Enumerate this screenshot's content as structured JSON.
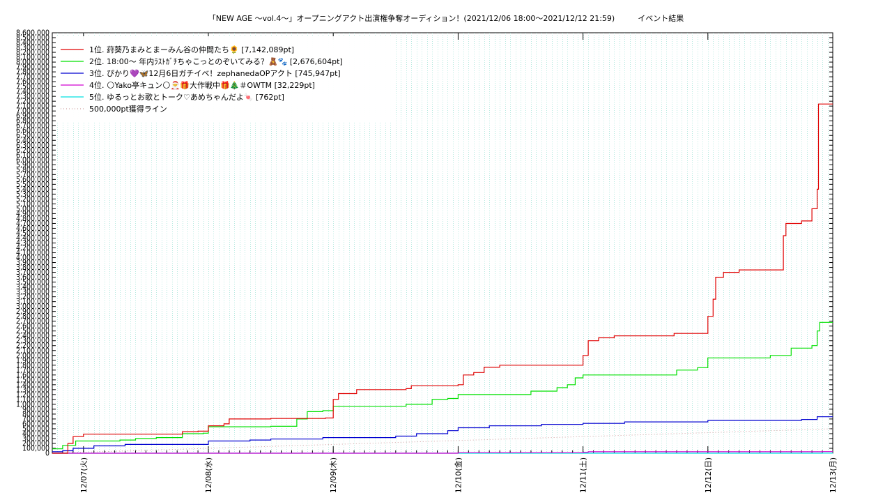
{
  "title": "「NEW AGE 〜vol.4〜」オープニングアクト出演権争奪オーディション！(2021/12/06 18:00〜2021/12/12 21:59)　　　イベント結果",
  "chart_data": {
    "type": "line",
    "title": "「NEW AGE 〜vol.4〜」オープニングアクト出演権争奪オーディション！(2021/12/06 18:00〜2021/12/12 21:59)　　　イベント結果",
    "xlabel": "",
    "ylabel": "",
    "x_ticks": [
      "12/07(火)",
      "12/08(水)",
      "12/09(木)",
      "12/10(金)",
      "12/11(土)",
      "12/12(日)",
      "12/13(月)"
    ],
    "x_range": [
      "2021/12/06 18:00",
      "2021/12/13 00:00"
    ],
    "y_range": [
      0,
      8600000
    ],
    "y_tick_step": 100000,
    "grid": true,
    "legend_position": "top-left",
    "reference_line": {
      "name": "500,000pt獲得ライン",
      "value": 500000,
      "color": "#d0a0a0"
    },
    "series": [
      {
        "name": "1位. 荮葵乃まみとまーみん谷の仲間たち🌻 [7,142,089pt]",
        "color": "#e00000",
        "points": [
          [
            "2021/12/06 18:00",
            0
          ],
          [
            "2021/12/06 20:30",
            0
          ],
          [
            "2021/12/06 21:00",
            200000
          ],
          [
            "2021/12/06 22:00",
            340000
          ],
          [
            "2021/12/07 00:00",
            390000
          ],
          [
            "2021/12/07 18:00",
            390000
          ],
          [
            "2021/12/07 19:00",
            440000
          ],
          [
            "2021/12/07 22:00",
            450000
          ],
          [
            "2021/12/08 00:00",
            560000
          ],
          [
            "2021/12/08 03:00",
            600000
          ],
          [
            "2021/12/08 04:00",
            700000
          ],
          [
            "2021/12/08 12:00",
            710000
          ],
          [
            "2021/12/08 22:30",
            720000
          ],
          [
            "2021/12/09 00:00",
            1100000
          ],
          [
            "2021/12/09 01:00",
            1220000
          ],
          [
            "2021/12/09 04:30",
            1300000
          ],
          [
            "2021/12/09 14:00",
            1320000
          ],
          [
            "2021/12/09 15:00",
            1380000
          ],
          [
            "2021/12/09 23:59",
            1400000
          ],
          [
            "2021/12/10 01:00",
            1600000
          ],
          [
            "2021/12/10 03:00",
            1650000
          ],
          [
            "2021/12/10 05:00",
            1760000
          ],
          [
            "2021/12/10 08:00",
            1800000
          ],
          [
            "2021/12/10 23:00",
            1800000
          ],
          [
            "2021/12/11 00:00",
            2000000
          ],
          [
            "2021/12/11 01:00",
            2300000
          ],
          [
            "2021/12/11 03:00",
            2360000
          ],
          [
            "2021/12/11 06:00",
            2400000
          ],
          [
            "2021/12/11 16:00",
            2400000
          ],
          [
            "2021/12/11 17:30",
            2450000
          ],
          [
            "2021/12/11 23:00",
            2450000
          ],
          [
            "2021/12/12 00:00",
            2800000
          ],
          [
            "2021/12/12 01:00",
            3150000
          ],
          [
            "2021/12/12 01:30",
            3600000
          ],
          [
            "2021/12/12 03:00",
            3700000
          ],
          [
            "2021/12/12 06:00",
            3750000
          ],
          [
            "2021/12/12 14:00",
            3750000
          ],
          [
            "2021/12/12 14:30",
            4450000
          ],
          [
            "2021/12/12 15:00",
            4700000
          ],
          [
            "2021/12/12 18:00",
            4750000
          ],
          [
            "2021/12/12 20:00",
            5000000
          ],
          [
            "2021/12/12 21:00",
            5400000
          ],
          [
            "2021/12/12 21:15",
            7142089
          ],
          [
            "2021/12/13 00:00",
            7142089
          ]
        ]
      },
      {
        "name": "2位. 18:00〜 年内ﾗｽﾄｶﾞﾁちゃこっとのぞいてみる？🧸🐾 [2,676,604pt]",
        "color": "#00e000",
        "points": [
          [
            "2021/12/06 18:00",
            90000
          ],
          [
            "2021/12/06 19:00",
            90000
          ],
          [
            "2021/12/06 20:00",
            160000
          ],
          [
            "2021/12/06 21:30",
            160000
          ],
          [
            "2021/12/06 22:30",
            250000
          ],
          [
            "2021/12/07 07:00",
            270000
          ],
          [
            "2021/12/07 10:00",
            300000
          ],
          [
            "2021/12/07 14:00",
            320000
          ],
          [
            "2021/12/07 19:00",
            400000
          ],
          [
            "2021/12/07 23:00",
            410000
          ],
          [
            "2021/12/08 00:00",
            540000
          ],
          [
            "2021/12/08 12:00",
            550000
          ],
          [
            "2021/12/08 17:00",
            700000
          ],
          [
            "2021/12/08 19:00",
            850000
          ],
          [
            "2021/12/08 22:00",
            870000
          ],
          [
            "2021/12/09 00:00",
            960000
          ],
          [
            "2021/12/09 12:00",
            960000
          ],
          [
            "2021/12/09 14:00",
            1000000
          ],
          [
            "2021/12/09 19:00",
            1100000
          ],
          [
            "2021/12/09 22:00",
            1120000
          ],
          [
            "2021/12/10 00:00",
            1200000
          ],
          [
            "2021/12/10 12:00",
            1200000
          ],
          [
            "2021/12/10 14:00",
            1270000
          ],
          [
            "2021/12/10 19:00",
            1340000
          ],
          [
            "2021/12/10 21:00",
            1400000
          ],
          [
            "2021/12/10 22:30",
            1540000
          ],
          [
            "2021/12/11 00:00",
            1600000
          ],
          [
            "2021/12/11 11:00",
            1600000
          ],
          [
            "2021/12/11 18:00",
            1700000
          ],
          [
            "2021/12/11 22:00",
            1750000
          ],
          [
            "2021/12/11 23:59",
            1950000
          ],
          [
            "2021/12/12 10:00",
            1950000
          ],
          [
            "2021/12/12 12:00",
            2000000
          ],
          [
            "2021/12/12 16:00",
            2150000
          ],
          [
            "2021/12/12 20:00",
            2200000
          ],
          [
            "2021/12/12 21:00",
            2500000
          ],
          [
            "2021/12/12 21:30",
            2676604
          ],
          [
            "2021/12/13 00:00",
            2676604
          ]
        ]
      },
      {
        "name": "3位. ぴかり💜🦋12月6日ガチイベ！zephanedaOPアクト [745,947pt]",
        "color": "#0000d0",
        "points": [
          [
            "2021/12/06 18:00",
            30000
          ],
          [
            "2021/12/06 20:00",
            50000
          ],
          [
            "2021/12/06 22:00",
            100000
          ],
          [
            "2021/12/07 02:00",
            150000
          ],
          [
            "2021/12/07 08:00",
            180000
          ],
          [
            "2021/12/08 00:00",
            250000
          ],
          [
            "2021/12/08 08:00",
            270000
          ],
          [
            "2021/12/08 12:00",
            290000
          ],
          [
            "2021/12/08 22:00",
            320000
          ],
          [
            "2021/12/09 12:00",
            350000
          ],
          [
            "2021/12/09 16:00",
            400000
          ],
          [
            "2021/12/09 22:00",
            460000
          ],
          [
            "2021/12/10 00:00",
            520000
          ],
          [
            "2021/12/10 06:00",
            560000
          ],
          [
            "2021/12/10 16:00",
            590000
          ],
          [
            "2021/12/11 00:00",
            610000
          ],
          [
            "2021/12/11 08:00",
            640000
          ],
          [
            "2021/12/12 00:00",
            670000
          ],
          [
            "2021/12/12 18:00",
            690000
          ],
          [
            "2021/12/12 21:00",
            745947
          ],
          [
            "2021/12/13 00:00",
            745947
          ]
        ]
      },
      {
        "name": "4位. 🌕Yako亭キュン🌕🎅🎁大作戦中🎁🎄＃OWTM [32,229pt]",
        "color": "#d000d0",
        "points": [
          [
            "2021/12/06 18:00",
            0
          ],
          [
            "2021/12/09 12:00",
            0
          ],
          [
            "2021/12/10 00:00",
            10000
          ],
          [
            "2021/12/11 00:00",
            20000
          ],
          [
            "2021/12/11 01:00",
            30000
          ],
          [
            "2021/12/12 21:59",
            32229
          ],
          [
            "2021/12/13 00:00",
            32229
          ]
        ]
      },
      {
        "name": "5位. ゆるっとお歌とトーク♡あめちゃんだよ🍬 [762pt]",
        "color": "#00e0e0",
        "points": [
          [
            "2021/12/06 18:00",
            0
          ],
          [
            "2021/12/12 21:59",
            762
          ],
          [
            "2021/12/13 00:00",
            762
          ]
        ]
      }
    ]
  }
}
